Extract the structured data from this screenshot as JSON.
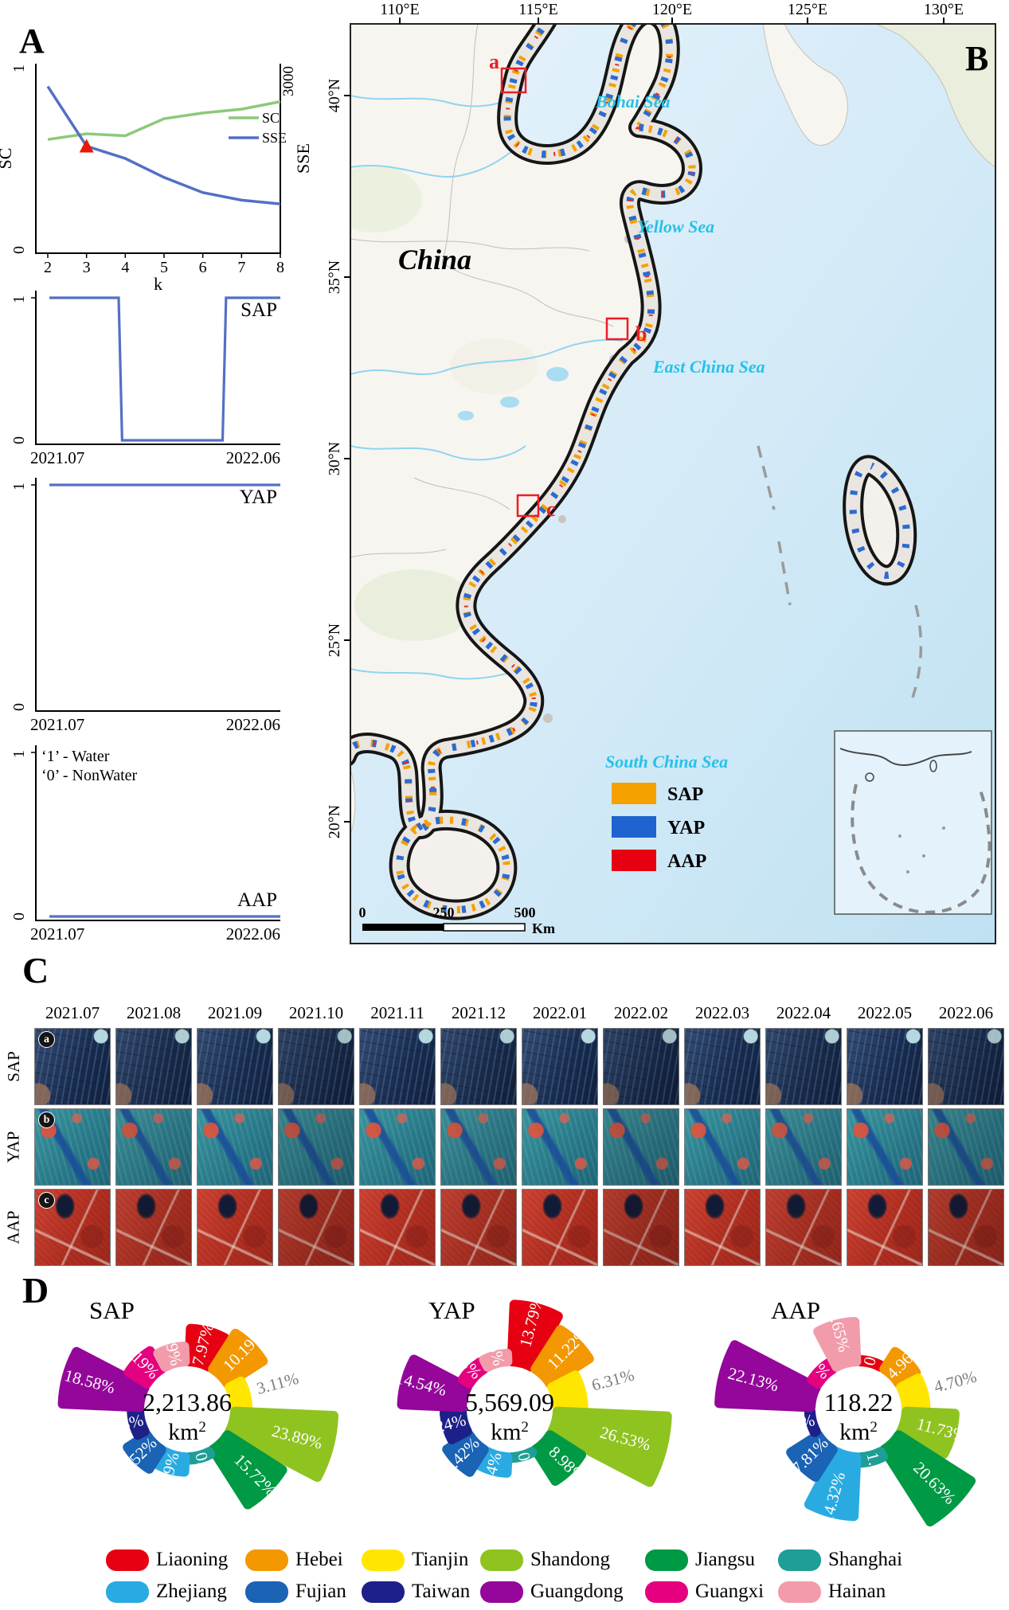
{
  "panelA": {
    "label": "A",
    "annotations": [
      "‘1’ - Water",
      "‘0’ - NonWater"
    ]
  },
  "panelB": {
    "label": "B",
    "country_label": "China",
    "top_ticks": [
      "110°E",
      "115°E",
      "120°E",
      "125°E",
      "130°E"
    ],
    "left_ticks": [
      "40°N",
      "35°N",
      "30°N",
      "25°N",
      "20°N"
    ],
    "sea_labels": [
      "Bohai Sea",
      "Yellow Sea",
      "East China Sea",
      "South China Sea"
    ],
    "markers": [
      "a",
      "b",
      "c"
    ],
    "legend": [
      {
        "label": "SAP",
        "color": "#f5a100"
      },
      {
        "label": "YAP",
        "color": "#1e63cf"
      },
      {
        "label": "AAP",
        "color": "#e60012"
      }
    ],
    "scalebar": {
      "ticks": [
        "0",
        "250",
        "500"
      ],
      "unit": "Km"
    }
  },
  "panelC": {
    "label": "C",
    "dates": [
      "2021.07",
      "2021.08",
      "2021.09",
      "2021.10",
      "2021.11",
      "2021.12",
      "2022.01",
      "2022.02",
      "2022.03",
      "2022.04",
      "2022.05",
      "2022.06"
    ],
    "rows": [
      {
        "label": "SAP",
        "marker": "a",
        "style": "sap"
      },
      {
        "label": "YAP",
        "marker": "b",
        "style": "yap"
      },
      {
        "label": "AAP",
        "marker": "c",
        "style": "aap"
      }
    ]
  },
  "panelD": {
    "label": "D",
    "provinces": [
      {
        "name": "Liaoning",
        "color": "#e60012"
      },
      {
        "name": "Hebei",
        "color": "#f39800"
      },
      {
        "name": "Tianjin",
        "color": "#ffe600"
      },
      {
        "name": "Shandong",
        "color": "#8fc31f"
      },
      {
        "name": "Jiangsu",
        "color": "#009944"
      },
      {
        "name": "Shanghai",
        "color": "#1e9e96"
      },
      {
        "name": "Zhejiang",
        "color": "#29abe2"
      },
      {
        "name": "Fujian",
        "color": "#1a63b5"
      },
      {
        "name": "Taiwan",
        "color": "#1d2088"
      },
      {
        "name": "Guangdong",
        "color": "#94079a"
      },
      {
        "name": "Guangxi",
        "color": "#e4007f"
      },
      {
        "name": "Hainan",
        "color": "#f29cab"
      }
    ]
  },
  "chart_data": [
    {
      "id": "elbow",
      "type": "line",
      "xlabel": "k",
      "x": [
        2,
        3,
        4,
        5,
        6,
        7,
        8
      ],
      "series": [
        {
          "name": "SC",
          "color": "#8cc97a",
          "values": [
            0.6,
            0.63,
            0.62,
            0.71,
            0.74,
            0.76,
            0.8
          ]
        },
        {
          "name": "SSE",
          "color": "#5470c4",
          "values": [
            0.88,
            0.565,
            0.5,
            0.4,
            0.32,
            0.28,
            0.26
          ]
        }
      ],
      "ylabel_left": "SC",
      "ylabel_right": "SSE",
      "ytick_left_top": "1",
      "ytick_left_bottom": "0",
      "ytick_right_top": "3000",
      "elbow_marker": {
        "x": 3,
        "series": "SSE",
        "shape": "triangle",
        "color": "#e8190c"
      },
      "legend_position": "right"
    },
    {
      "id": "sap_ts",
      "type": "line",
      "label": "SAP",
      "color": "#5470c4",
      "x_labels": [
        "2021.07",
        "2022.06"
      ],
      "yticks": [
        "1",
        "0"
      ],
      "points_t": [
        0,
        0.3,
        0.315,
        0.75,
        0.765,
        1
      ],
      "points_v": [
        1,
        1,
        0,
        0,
        1,
        1
      ]
    },
    {
      "id": "yap_ts",
      "type": "line",
      "label": "YAP",
      "color": "#5470c4",
      "x_labels": [
        "2021.07",
        "2022.06"
      ],
      "yticks": [
        "1",
        "0"
      ],
      "points_t": [
        0,
        1
      ],
      "points_v": [
        1,
        1
      ]
    },
    {
      "id": "aap_ts",
      "type": "line",
      "label": "AAP",
      "color": "#5470c4",
      "x_labels": [
        "2021.07",
        "2022.06"
      ],
      "yticks": [
        "1",
        "0"
      ],
      "points_t": [
        0,
        1
      ],
      "points_v": [
        0,
        0
      ]
    },
    {
      "id": "rose_sap",
      "type": "pie",
      "variant": "nightingale-rose",
      "title": "SAP",
      "center_value": "2,213.86",
      "center_unit_base": "km",
      "center_unit_sup": "2",
      "categories": [
        "Liaoning",
        "Hebei",
        "Tianjin",
        "Shandong",
        "Jiangsu",
        "Shanghai",
        "Zhejiang",
        "Fujian",
        "Taiwan",
        "Guangdong",
        "Guangxi",
        "Hainan"
      ],
      "values": [
        7.97,
        10.19,
        3.11,
        23.89,
        15.72,
        0.69,
        3.59,
        5.52,
        1.88,
        18.58,
        5.19,
        3.69
      ]
    },
    {
      "id": "rose_yap",
      "type": "pie",
      "variant": "nightingale-rose",
      "title": "YAP",
      "center_value": "5,569.09",
      "center_unit_base": "km",
      "center_unit_sup": "2",
      "categories": [
        "Liaoning",
        "Hebei",
        "Tianjin",
        "Shandong",
        "Jiangsu",
        "Shanghai",
        "Zhejiang",
        "Fujian",
        "Taiwan",
        "Guangdong",
        "Guangxi",
        "Hainan"
      ],
      "values": [
        13.79,
        11.22,
        6.31,
        26.53,
        8.98,
        0.25,
        3.84,
        6.42,
        4.24,
        14.54,
        1.93,
        1.96
      ]
    },
    {
      "id": "rose_aap",
      "type": "pie",
      "variant": "nightingale-rose",
      "title": "AAP",
      "center_value": "118.22",
      "center_unit_base": "km",
      "center_unit_sup": "2",
      "categories": [
        "Liaoning",
        "Hebei",
        "Tianjin",
        "Shandong",
        "Jiangsu",
        "Shanghai",
        "Zhejiang",
        "Fujian",
        "Taiwan",
        "Guangdong",
        "Guangxi",
        "Hainan"
      ],
      "values": [
        0.41,
        4.96,
        4.7,
        11.73,
        20.63,
        1.41,
        14.32,
        7.81,
        0.44,
        22.13,
        1.8,
        9.65
      ]
    }
  ]
}
